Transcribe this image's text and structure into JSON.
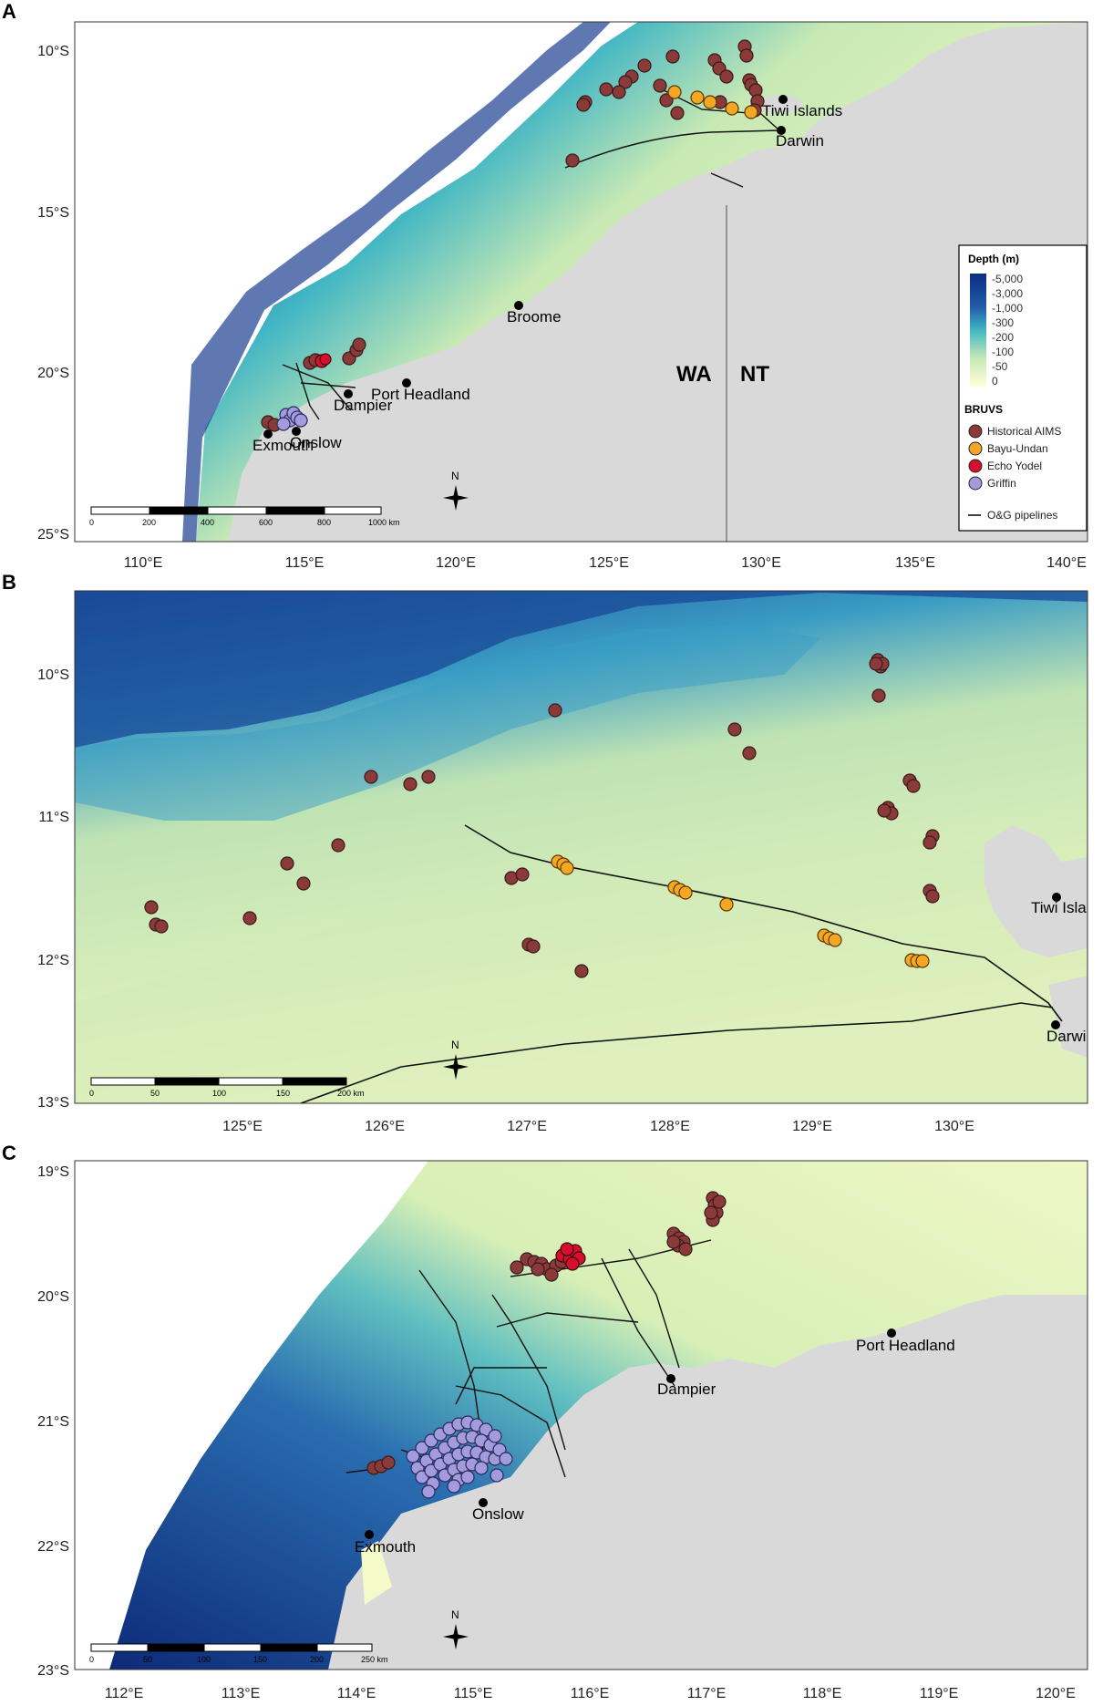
{
  "panels": [
    {
      "label": "A",
      "ylabels": [
        "10°S",
        "15°S",
        "20°S",
        "25°S"
      ],
      "xlabels": [
        "110°E",
        "115°E",
        "120°E",
        "125°E",
        "130°E",
        "135°E",
        "140°E"
      ],
      "places": [
        "Tiwi Islands",
        "Darwin",
        "Broome",
        "Port Headland",
        "Dampier",
        "Onslow",
        "Exmouth"
      ],
      "regions": [
        "WA",
        "NT"
      ],
      "scalebar": {
        "ticks": [
          "0",
          "200",
          "400",
          "600",
          "800",
          "1000 km"
        ]
      },
      "compass": "N"
    },
    {
      "label": "B",
      "ylabels": [
        "10°S",
        "11°S",
        "12°S",
        "13°S"
      ],
      "xlabels": [
        "125°E",
        "126°E",
        "127°E",
        "128°E",
        "129°E",
        "130°E"
      ],
      "places": [
        "Tiwi Islan",
        "Darwin"
      ],
      "scalebar": {
        "ticks": [
          "0",
          "50",
          "100",
          "150",
          "200 km"
        ]
      },
      "compass": "N"
    },
    {
      "label": "C",
      "ylabels": [
        "19°S",
        "20°S",
        "21°S",
        "22°S",
        "23°S"
      ],
      "xlabels": [
        "112°E",
        "113°E",
        "114°E",
        "115°E",
        "116°E",
        "117°E",
        "118°E",
        "119°E",
        "120°E"
      ],
      "places": [
        "Port Headland",
        "Dampier",
        "Onslow",
        "Exmouth"
      ],
      "scalebar": {
        "ticks": [
          "0",
          "50",
          "100",
          "150",
          "200",
          "250 km"
        ]
      },
      "compass": "N"
    }
  ],
  "legend": {
    "depth_title": "Depth (m)",
    "depth_ticks": [
      "-5,000",
      "-3,000",
      "-1,000",
      "-300",
      "-200",
      "-100",
      "-50",
      "0"
    ],
    "depth_colors": [
      "#0c2c84",
      "#225ea8",
      "#1d91c0",
      "#41b6c4",
      "#7fcdbb",
      "#c7e9b4",
      "#edf8b1",
      "#ffffd9"
    ],
    "bruvs_title": "BRUVS",
    "series": [
      {
        "label": "Historical AIMS",
        "color": "#8b3a3a"
      },
      {
        "label": "Bayu-Undan",
        "color": "#f5a623"
      },
      {
        "label": "Echo Yodel",
        "color": "#d4102e"
      },
      {
        "label": "Griffin",
        "color": "#a39bde"
      }
    ],
    "pipeline_label": "O&G pipelines"
  },
  "colors": {
    "land": "#d9d9d9",
    "deep": "#1a3f8f",
    "mid": "#2b8cbe",
    "shallow": "#c7e9b4",
    "coast": "#f4fac8"
  }
}
